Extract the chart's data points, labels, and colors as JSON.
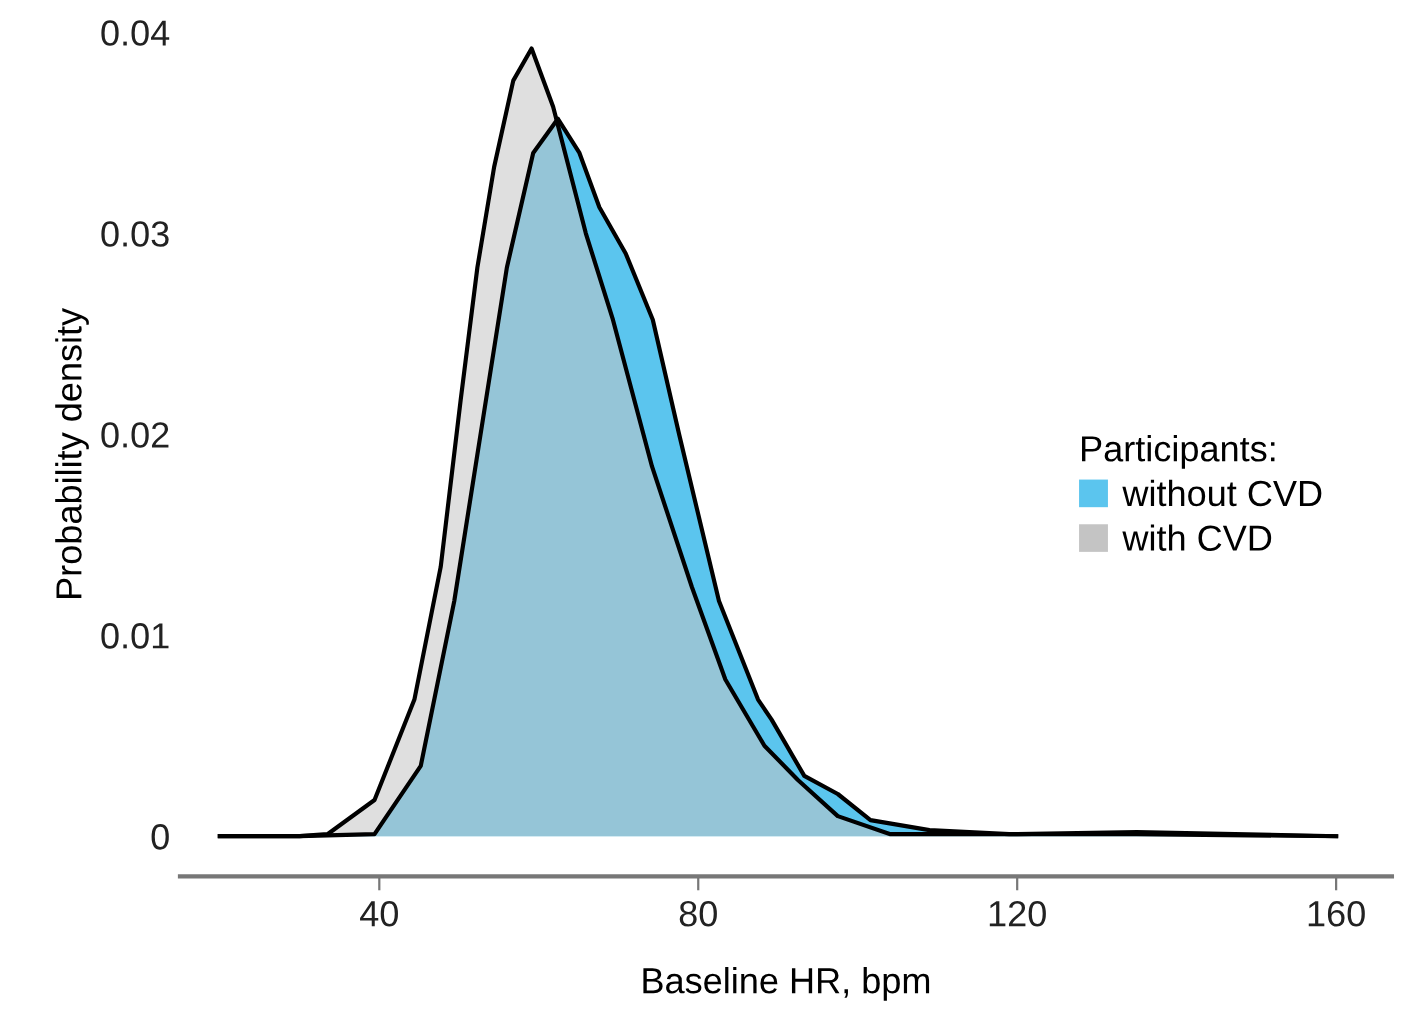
{
  "chart_data": {
    "type": "area",
    "xlabel": "Baseline HR, bpm",
    "ylabel": "Probability density",
    "legend_title": "Participants:",
    "legend": "right",
    "xlim": [
      15,
      167
    ],
    "xticks": [
      40,
      80,
      120,
      160
    ],
    "ylim": [
      -0.002,
      0.04
    ],
    "yticks": [
      0,
      0.01,
      0.02,
      0.03,
      0.04
    ],
    "grid": false,
    "series": [
      {
        "name": "without CVD",
        "color": "#5bc5ee",
        "x": [
          20,
          30,
          39.4,
          45.2,
          49.4,
          52.7,
          56,
          59.3,
          62.4,
          65.1,
          67.6,
          70.9,
          74.3,
          77.6,
          82.6,
          87.5,
          89.2,
          93.3,
          97.5,
          101.6,
          109,
          119,
          135,
          160
        ],
        "values": [
          0,
          0,
          0.0001,
          0.0035,
          0.0117,
          0.02,
          0.0283,
          0.034,
          0.0357,
          0.034,
          0.0313,
          0.029,
          0.0257,
          0.02,
          0.0117,
          0.0068,
          0.0058,
          0.003,
          0.0021,
          0.0008,
          0.0003,
          0.0001,
          0.0001,
          0
        ]
      },
      {
        "name": "with CVD",
        "color": "#c4c4c4",
        "x": [
          20,
          30,
          33.5,
          39.4,
          44.4,
          47.7,
          50.2,
          52.3,
          54.4,
          56.8,
          59.1,
          61.8,
          65.9,
          69.3,
          74.2,
          79.2,
          83.4,
          88.3,
          92.5,
          97.5,
          104.1,
          120,
          135,
          160
        ],
        "values": [
          0,
          0,
          0.0001,
          0.0018,
          0.0068,
          0.0134,
          0.0217,
          0.0283,
          0.0333,
          0.0376,
          0.0392,
          0.0363,
          0.03,
          0.0257,
          0.0184,
          0.0124,
          0.0078,
          0.0045,
          0.0028,
          0.001,
          0.0001,
          0.0001,
          0.0002,
          0
        ]
      }
    ]
  }
}
